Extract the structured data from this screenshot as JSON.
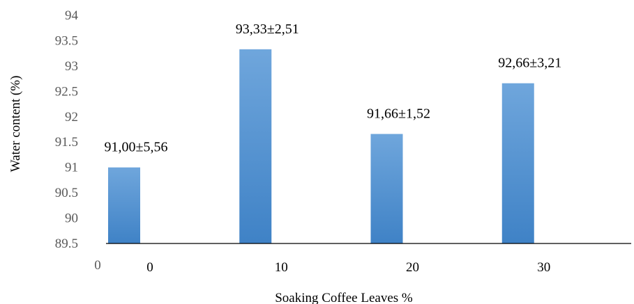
{
  "chart_data": {
    "type": "bar",
    "title": "",
    "xlabel": "Soaking Coffee Leaves %",
    "ylabel": "Water content (%)",
    "categories": [
      "0",
      "10",
      "20",
      "30"
    ],
    "values": [
      91.0,
      93.33,
      91.66,
      92.66
    ],
    "data_labels": [
      "91,00±5,56",
      "93,33±2,51",
      "91,66±1,52",
      "92,66±3,21"
    ],
    "ylim": [
      89.5,
      94
    ],
    "yticks": [
      "89.5",
      "90",
      "90.5",
      "91",
      "91.5",
      "92",
      "92.5",
      "93",
      "93.5",
      "94"
    ],
    "origin_label": "0",
    "grid": false,
    "legend": "none",
    "bar_color": "#5b9bd5"
  }
}
